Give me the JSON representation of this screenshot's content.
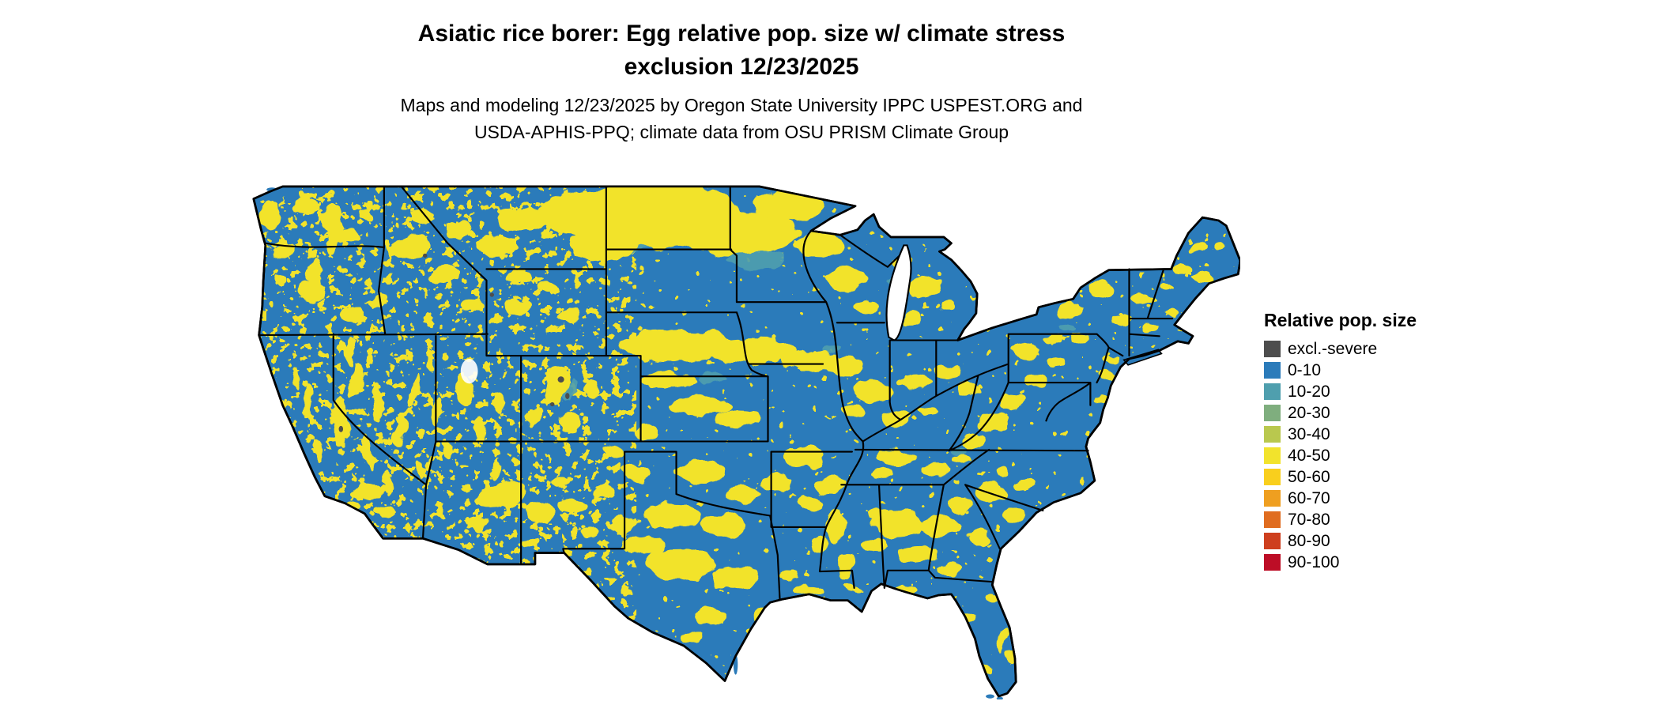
{
  "header": {
    "title_line1": "Asiatic rice borer: Egg relative pop. size w/ climate stress",
    "title_line2": "exclusion 12/23/2025",
    "subtitle_line1": "Maps and modeling 12/23/2025 by Oregon State University IPPC USPEST.ORG and",
    "subtitle_line2": "USDA-APHIS-PPQ; climate data from OSU PRISM Climate Group"
  },
  "map": {
    "land_base_color": "#2b7bba",
    "hotspot_color": "#f2e32c",
    "border_color": "#000000",
    "water_color": "#ffffff"
  },
  "legend": {
    "title": "Relative pop. size",
    "items": [
      {
        "label": "excl.-severe",
        "color": "#4d4d4d"
      },
      {
        "label": "0-10",
        "color": "#2b7bba"
      },
      {
        "label": "10-20",
        "color": "#4f9fae"
      },
      {
        "label": "20-30",
        "color": "#7fae7e"
      },
      {
        "label": "30-40",
        "color": "#b9c84e"
      },
      {
        "label": "40-50",
        "color": "#f2e32c"
      },
      {
        "label": "50-60",
        "color": "#f9cf1d"
      },
      {
        "label": "60-70",
        "color": "#ef9f20"
      },
      {
        "label": "70-80",
        "color": "#e06c1f"
      },
      {
        "label": "80-90",
        "color": "#ce3f1e"
      },
      {
        "label": "90-100",
        "color": "#bd0d26"
      }
    ]
  }
}
